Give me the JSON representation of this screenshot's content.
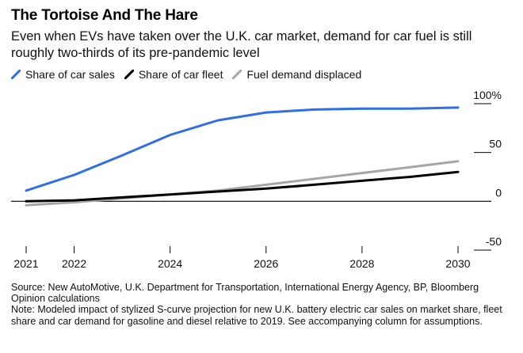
{
  "title": "The Tortoise And The Hare",
  "subtitle": "Even when EVs have taken over the U.K. car market, demand for car fuel is still roughly two-thirds of its pre-pandemic level",
  "legend": [
    {
      "label": "Share of car sales",
      "color": "#2f6fe6"
    },
    {
      "label": "Share of car fleet",
      "color": "#000000"
    },
    {
      "label": "Fuel demand displaced",
      "color": "#a6a6a6"
    }
  ],
  "source": "Source: New AutoMotive, U.K. Department for Transportation, International Energy Agency, BP, Bloomberg Opinion calculations",
  "note": "Note: Modeled impact of stylized S-curve projection for new U.K. battery electric car sales on market share, fleet share and car demand for gasoline and diesel relative to 2019. See accompanying column for assumptions.",
  "chart_data": {
    "type": "line",
    "title": "The Tortoise And The Hare",
    "x": [
      2021,
      2022,
      2023,
      2024,
      2025,
      2026,
      2027,
      2028,
      2029,
      2030
    ],
    "xlim": [
      2021,
      2030
    ],
    "xticks": [
      2021,
      2022,
      2024,
      2026,
      2028,
      2030
    ],
    "ylim": [
      -50,
      100
    ],
    "yticks": [
      100,
      50,
      0,
      -50
    ],
    "ytick_labels": [
      "100%",
      "50",
      "0",
      "-50"
    ],
    "xlabel": "",
    "ylabel": "",
    "series": [
      {
        "name": "Share of car sales",
        "color": "#2f6fe6",
        "values": [
          11,
          27,
          47,
          68,
          83,
          91,
          94,
          95,
          95,
          96
        ]
      },
      {
        "name": "Share of car fleet",
        "color": "#000000",
        "values": [
          0,
          1,
          4,
          7,
          10,
          13,
          17,
          21,
          25,
          30
        ]
      },
      {
        "name": "Fuel demand displaced",
        "color": "#a6a6a6",
        "values": [
          -4,
          -1,
          3,
          7,
          11,
          17,
          23,
          29,
          35,
          41
        ]
      }
    ]
  }
}
